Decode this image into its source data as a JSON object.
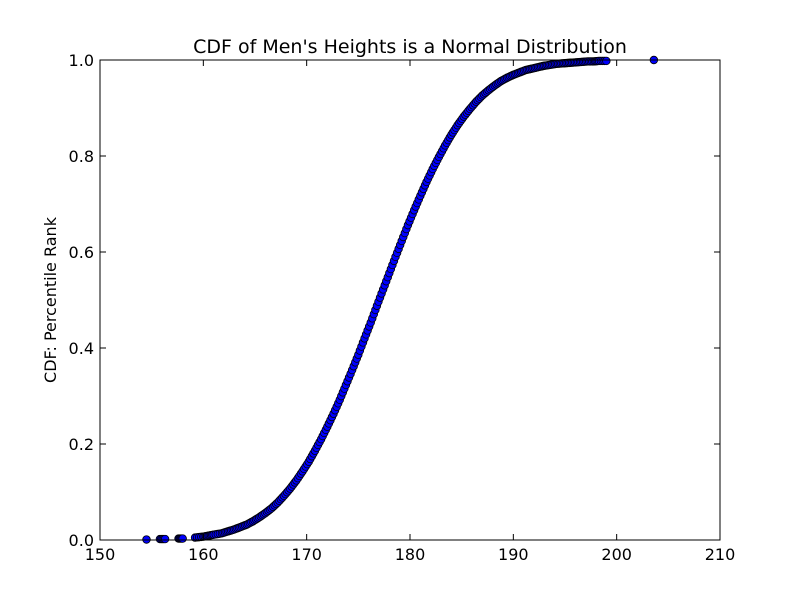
{
  "chart_data": {
    "type": "scatter",
    "title": "CDF of Men's Heights is a Normal Distribution",
    "xlabel": "",
    "ylabel": "CDF: Percentile Rank",
    "xlim": [
      150,
      210
    ],
    "ylim": [
      0.0,
      1.0
    ],
    "xticks": [
      "150",
      "160",
      "170",
      "180",
      "190",
      "200",
      "210"
    ],
    "yticks": [
      "0.0",
      "0.2",
      "0.4",
      "0.6",
      "0.8",
      "1.0"
    ],
    "grid": false,
    "legend": "none",
    "marker_color": "#0000ff",
    "series": [
      {
        "x": [
          154.5,
          155.8,
          156.3,
          157.6,
          158.0,
          159.2,
          160.0,
          160.5,
          161.0,
          161.8,
          162.4,
          163.0,
          163.6,
          164.2,
          164.8,
          165.4,
          166.0,
          166.6,
          167.2,
          167.8,
          168.4,
          169.0,
          169.6,
          170.2,
          170.8,
          171.4,
          172.0,
          172.6,
          173.2,
          173.8,
          174.4,
          175.0,
          175.6,
          176.2,
          176.8,
          177.4,
          178.0,
          178.6,
          179.2,
          179.8,
          180.4,
          181.0,
          181.6,
          182.2,
          182.8,
          183.4,
          184.0,
          184.6,
          185.2,
          185.8,
          186.4,
          187.0,
          187.6,
          188.2,
          188.8,
          189.4,
          190.0,
          190.6,
          191.2,
          191.8,
          192.4,
          193.0,
          193.6,
          194.2,
          194.8,
          195.4,
          196.0,
          196.6,
          197.2,
          197.8,
          198.3,
          199.0,
          203.6
        ],
        "y": [
          0.001,
          0.002,
          0.002,
          0.003,
          0.003,
          0.005,
          0.007,
          0.009,
          0.011,
          0.014,
          0.018,
          0.022,
          0.027,
          0.032,
          0.039,
          0.047,
          0.056,
          0.066,
          0.078,
          0.092,
          0.107,
          0.124,
          0.143,
          0.163,
          0.186,
          0.21,
          0.236,
          0.263,
          0.292,
          0.323,
          0.354,
          0.386,
          0.42,
          0.453,
          0.488,
          0.522,
          0.556,
          0.59,
          0.623,
          0.656,
          0.687,
          0.717,
          0.746,
          0.773,
          0.798,
          0.822,
          0.844,
          0.864,
          0.882,
          0.898,
          0.913,
          0.926,
          0.937,
          0.947,
          0.956,
          0.963,
          0.969,
          0.974,
          0.979,
          0.982,
          0.985,
          0.988,
          0.99,
          0.992,
          0.993,
          0.994,
          0.995,
          0.996,
          0.997,
          0.997,
          0.998,
          0.998,
          1.0
        ]
      }
    ]
  }
}
